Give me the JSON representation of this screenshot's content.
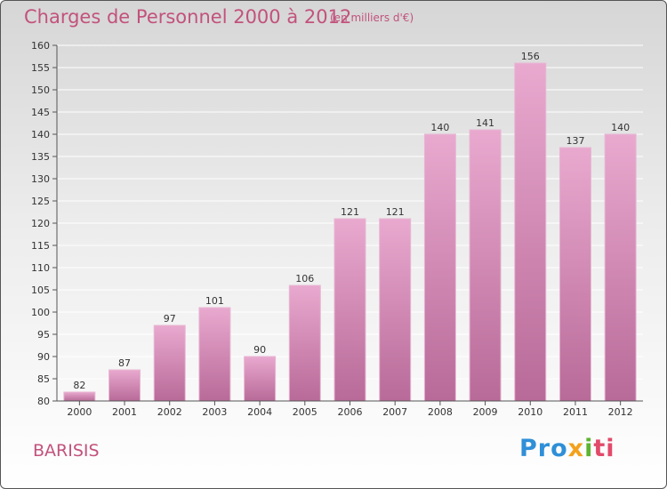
{
  "header": {
    "title": "Charges de Personnel 2000 à 2012",
    "subtitle": "(en milliers d'€)"
  },
  "footer": {
    "city": "BARISIS",
    "logo_text": "Proxiti",
    "logo_parts": [
      "Pro",
      "x",
      "i",
      "ti"
    ]
  },
  "colors": {
    "bar": "#d08cb4",
    "bar_top": "#e9a9cf",
    "text_accent": "#c2527c"
  },
  "chart_data": {
    "type": "bar",
    "title": "Charges de Personnel 2000 à 2012",
    "subtitle": "(en milliers d'€)",
    "categories": [
      "2000",
      "2001",
      "2002",
      "2003",
      "2004",
      "2005",
      "2006",
      "2007",
      "2008",
      "2009",
      "2010",
      "2011",
      "2012"
    ],
    "values": [
      82,
      87,
      97,
      101,
      90,
      106,
      121,
      121,
      140,
      141,
      156,
      137,
      140
    ],
    "ylim": [
      80,
      160
    ],
    "yticks": [
      80,
      85,
      90,
      95,
      100,
      105,
      110,
      115,
      120,
      125,
      130,
      135,
      140,
      145,
      150,
      155,
      160
    ],
    "grid": true,
    "legend": "none"
  }
}
